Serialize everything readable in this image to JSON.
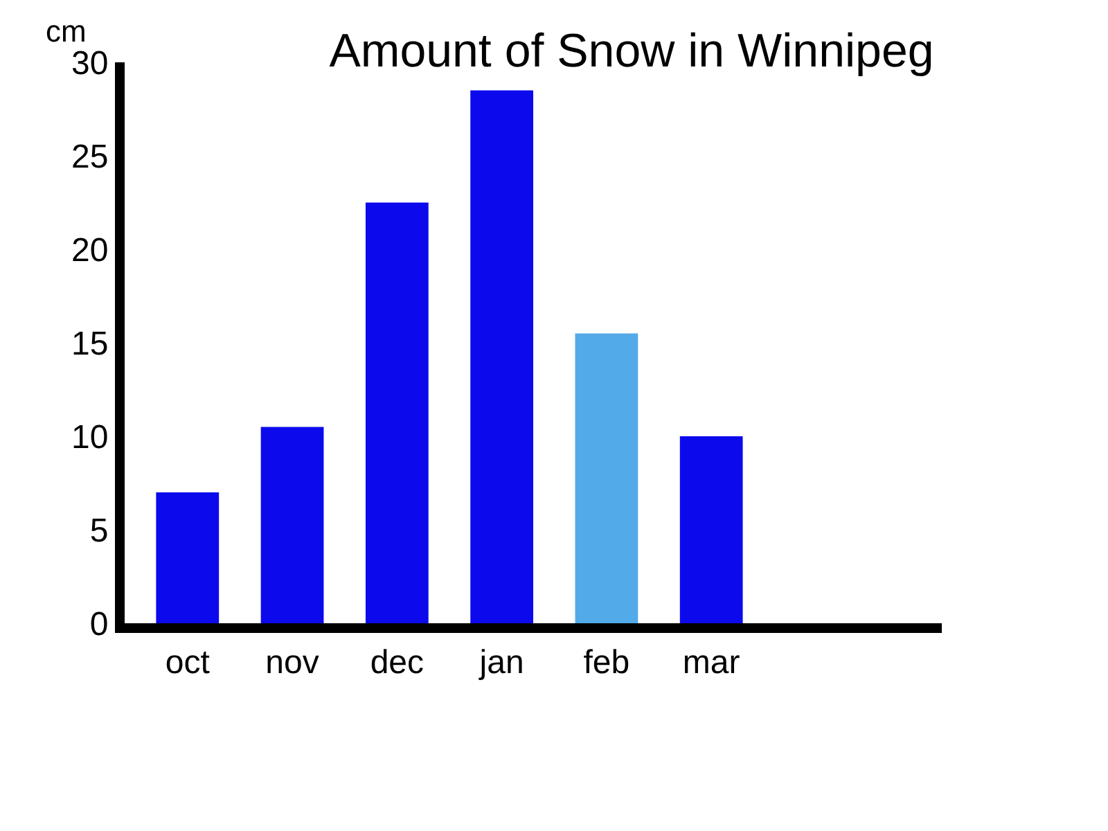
{
  "chart_data": {
    "type": "bar",
    "title": "Amount of Snow in Winnipeg",
    "ylabel": "cm",
    "categories": [
      "oct",
      "nov",
      "dec",
      "jan",
      "feb",
      "mar"
    ],
    "values": [
      7,
      10.5,
      22.5,
      28.5,
      15.5,
      10
    ],
    "colors": [
      "#0c0aec",
      "#0c0aec",
      "#0c0aec",
      "#0c0aec",
      "#52aae8",
      "#0c0aec"
    ],
    "ylim": [
      0,
      30
    ],
    "yticks": [
      0,
      5,
      10,
      15,
      20,
      25,
      30
    ],
    "grid": false
  }
}
